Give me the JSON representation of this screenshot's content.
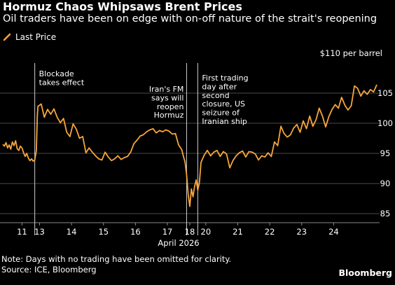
{
  "title": "Hormuz Chaos Whipsaws Brent Prices",
  "subtitle": "Oil traders have been on edge with on-off nature of the strait's reopening",
  "legend_label": "Last Price",
  "unit_label": "$110 per barrel",
  "note": "Note: Days with no trading have been omitted for clarity.",
  "source": "Source: ICE, Bloomberg",
  "brand": "Bloomberg",
  "colors": {
    "background": "#000000",
    "line": "#f7a53b",
    "grid": "#4a4a4a",
    "marker": "#d0d0d0",
    "text": "#ffffff"
  },
  "chart_data": {
    "type": "line",
    "title": "Hormuz Chaos Whipsaws Brent Prices",
    "subtitle": "Oil traders have been on edge with on-off nature of the strait's reopening",
    "xlabel": "April 2026",
    "ylabel": "$110 per barrel",
    "ylim": [
      83.5,
      110
    ],
    "yticks": [
      85,
      90,
      95,
      100,
      105
    ],
    "grid": true,
    "y_axis_side": "right",
    "legend_position": "top-left",
    "x_tick_labels": [
      "11",
      "13",
      "14",
      "15",
      "16",
      "17",
      "18",
      "20",
      "21",
      "22",
      "23",
      "24"
    ],
    "series": [
      {
        "name": "Last Price",
        "x": [
          0.0,
          0.05,
          0.1,
          0.15,
          0.2,
          0.25,
          0.3,
          0.35,
          0.4,
          0.45,
          0.5,
          0.55,
          0.6,
          0.65,
          0.7,
          0.75,
          0.8,
          0.85,
          0.9,
          0.95,
          1.0,
          1.05,
          1.08,
          1.1,
          1.2,
          1.3,
          1.4,
          1.5,
          1.6,
          1.7,
          1.8,
          1.9,
          2.0,
          2.1,
          2.2,
          2.3,
          2.4,
          2.5,
          2.6,
          2.7,
          2.8,
          2.9,
          3.0,
          3.1,
          3.2,
          3.3,
          3.4,
          3.5,
          3.6,
          3.7,
          3.8,
          3.9,
          4.0,
          4.1,
          4.2,
          4.3,
          4.4,
          4.5,
          4.6,
          4.7,
          4.8,
          4.9,
          5.0,
          5.1,
          5.2,
          5.3,
          5.4,
          5.5,
          5.6,
          5.65,
          5.7,
          5.75,
          5.8,
          5.85,
          5.9,
          5.95,
          6.0,
          6.05,
          6.1,
          6.15,
          6.2,
          6.3,
          6.4,
          6.5,
          6.6,
          6.7,
          6.8,
          6.9,
          7.0,
          7.1,
          7.2,
          7.3,
          7.4,
          7.5,
          7.6,
          7.7,
          7.8,
          7.9,
          8.0,
          8.1,
          8.2,
          8.3,
          8.4,
          8.5,
          8.6,
          8.7,
          8.8,
          8.9,
          9.0,
          9.1,
          9.2,
          9.3,
          9.4,
          9.5,
          9.6,
          9.7,
          9.8,
          9.9,
          10.0,
          10.1,
          10.2,
          10.3,
          10.4,
          10.5,
          10.6,
          10.7,
          10.8,
          10.9,
          11.0,
          11.1,
          11.2,
          11.3,
          11.4,
          11.5,
          11.6,
          11.7
        ],
        "y": [
          96.5,
          96.2,
          96.8,
          95.9,
          96.4,
          95.7,
          96.9,
          96.3,
          97.1,
          95.8,
          95.5,
          96.2,
          95.9,
          95.1,
          94.5,
          95.0,
          94.2,
          93.8,
          94.1,
          93.7,
          93.9,
          95.5,
          101.2,
          102.8,
          103.2,
          101.0,
          102.3,
          101.5,
          102.4,
          101.0,
          100.1,
          100.8,
          98.5,
          97.8,
          99.9,
          99.0,
          97.5,
          97.8,
          95.1,
          95.9,
          95.2,
          94.6,
          94.1,
          93.9,
          95.2,
          94.4,
          93.8,
          94.1,
          94.6,
          94.0,
          94.3,
          94.5,
          95.2,
          96.6,
          97.2,
          97.9,
          98.1,
          98.6,
          98.9,
          99.1,
          98.4,
          98.8,
          98.6,
          98.9,
          98.7,
          98.2,
          98.3,
          96.4,
          95.6,
          94.5,
          93.6,
          91.5,
          88.2,
          86.2,
          89.1,
          87.8,
          89.5,
          90.6,
          88.9,
          90.1,
          93.5,
          94.7,
          95.5,
          94.6,
          95.2,
          95.5,
          94.5,
          95.3,
          94.9,
          92.6,
          93.8,
          94.6,
          95.1,
          95.4,
          94.4,
          95.3,
          95.2,
          94.9,
          93.9,
          94.6,
          94.4,
          95.1,
          94.5,
          96.9,
          96.3,
          99.5,
          98.3,
          97.7,
          98.1,
          99.2,
          99.8,
          98.5,
          100.4,
          99.1,
          101.2,
          99.5,
          100.6,
          102.5,
          101.2,
          99.4,
          101.1,
          102.3,
          103.1,
          102.5,
          104.3,
          103.0,
          102.2,
          102.9,
          106.2,
          105.8,
          104.5,
          105.4,
          104.8,
          105.6,
          105.2,
          106.4
        ]
      }
    ],
    "annotations": [
      {
        "x": 1.0,
        "text": [
          "Blockade",
          "takes effect"
        ]
      },
      {
        "x": 5.75,
        "text": [
          "Iran's FM",
          "says will",
          "reopen",
          "Hormuz"
        ]
      },
      {
        "x": 6.1,
        "text": [
          "First trading",
          "day after",
          "second",
          "closure, US",
          "seizure of",
          "Iranian ship"
        ]
      }
    ],
    "x_ticks": [
      {
        "x": 0.6,
        "label": "11"
      },
      {
        "x": 1.15,
        "label": "13"
      },
      {
        "x": 2.15,
        "label": "14"
      },
      {
        "x": 3.15,
        "label": "15"
      },
      {
        "x": 4.15,
        "label": "16"
      },
      {
        "x": 5.15,
        "label": "17"
      },
      {
        "x": 5.85,
        "label": "18"
      },
      {
        "x": 6.35,
        "label": "20"
      },
      {
        "x": 7.35,
        "label": "21"
      },
      {
        "x": 8.35,
        "label": "22"
      },
      {
        "x": 9.35,
        "label": "23"
      },
      {
        "x": 10.35,
        "label": "24"
      }
    ]
  }
}
